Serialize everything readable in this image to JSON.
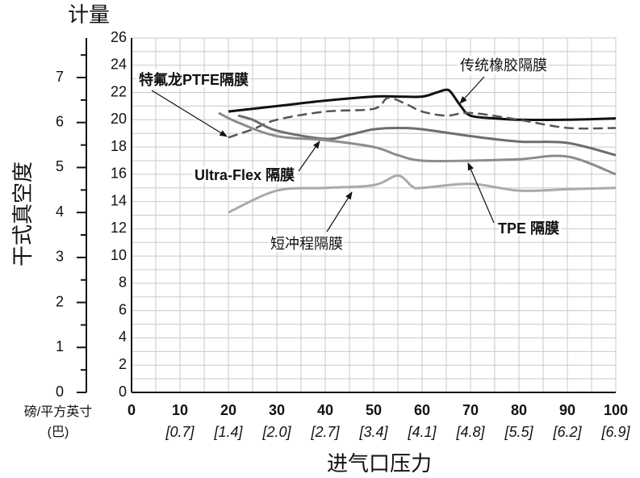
{
  "chart_data": {
    "type": "line",
    "y2_title": "计量",
    "ylabel": "干式真空度",
    "xlabel": "进气口压力",
    "x_unit_label": "磅/平方英寸",
    "x2_unit_label": "(巴)",
    "xlim": [
      0,
      100
    ],
    "xticks": [
      0,
      10,
      20,
      30,
      40,
      50,
      60,
      70,
      80,
      90,
      100
    ],
    "x2ticks": [
      {
        "value": 10,
        "label": "[0.7]"
      },
      {
        "value": 20,
        "label": "[1.4]"
      },
      {
        "value": 30,
        "label": "[2.0]"
      },
      {
        "value": 40,
        "label": "[2.7]"
      },
      {
        "value": 50,
        "label": "[3.4]"
      },
      {
        "value": 60,
        "label": "[4.1]"
      },
      {
        "value": 70,
        "label": "[4.8]"
      },
      {
        "value": 80,
        "label": "[5.5]"
      },
      {
        "value": 90,
        "label": "[6.2]"
      },
      {
        "value": 100,
        "label": "[6.9]"
      }
    ],
    "xgrid": [
      5,
      10,
      15,
      20,
      25,
      30,
      35,
      40,
      45,
      50,
      55,
      60,
      65,
      70,
      75,
      80,
      85,
      90,
      95,
      100
    ],
    "ylim": [
      0,
      26
    ],
    "yticks": [
      0,
      2,
      4,
      6,
      8,
      10,
      12,
      14,
      16,
      18,
      20,
      22,
      24,
      26
    ],
    "ygrid": [
      1,
      2,
      3,
      4,
      5,
      6,
      7,
      8,
      9,
      10,
      11,
      12,
      13,
      14,
      15,
      16,
      17,
      18,
      19,
      20,
      21,
      22,
      23,
      24,
      25,
      26
    ],
    "y2lim": [
      0,
      7.88
    ],
    "y2ticks": [
      0,
      1,
      2,
      3,
      4,
      5,
      6,
      7
    ],
    "y2minorticks": [
      0.5,
      1.5,
      2.5,
      3.5,
      4.5,
      5.5,
      6.5,
      7.5
    ],
    "grid": true,
    "series": [
      {
        "name": "传统橡胶隔膜",
        "color": "#111111",
        "dash": false,
        "x": [
          20,
          30,
          40,
          50,
          55,
          60,
          63,
          65,
          66,
          68,
          70,
          75,
          80,
          90,
          100
        ],
        "values": [
          20.6,
          21.0,
          21.4,
          21.7,
          21.7,
          21.7,
          22.0,
          22.2,
          22.0,
          21.0,
          20.3,
          20.1,
          20.0,
          20.0,
          20.1
        ]
      },
      {
        "name": "特氟龙PTFE隔膜",
        "color": "#555555",
        "dash": true,
        "x": [
          20,
          25,
          30,
          40,
          50,
          53,
          57,
          60,
          65,
          70,
          80,
          90,
          100
        ],
        "values": [
          18.7,
          19.3,
          20.0,
          20.6,
          20.8,
          21.6,
          21.1,
          20.6,
          20.3,
          20.5,
          20.0,
          19.4,
          19.4
        ]
      },
      {
        "name": "Ultra-Flex 隔膜",
        "color": "#6e6e6e",
        "dash": false,
        "x": [
          22,
          25,
          30,
          40,
          45,
          50,
          55,
          60,
          70,
          80,
          90,
          100
        ],
        "values": [
          20.3,
          20.0,
          19.2,
          18.6,
          18.9,
          19.3,
          19.4,
          19.3,
          18.8,
          18.4,
          18.3,
          17.4
        ]
      },
      {
        "name": "TPE 隔膜",
        "color": "#8c8c8c",
        "dash": false,
        "x": [
          18,
          22,
          30,
          40,
          50,
          55,
          60,
          70,
          80,
          90,
          100
        ],
        "values": [
          20.5,
          19.8,
          18.8,
          18.5,
          18.0,
          17.4,
          17.0,
          17.0,
          17.1,
          17.3,
          16.0
        ]
      },
      {
        "name": "短冲程隔膜",
        "color": "#aaaaaa",
        "dash": false,
        "x": [
          20,
          30,
          40,
          50,
          55,
          58,
          60,
          70,
          80,
          90,
          100
        ],
        "values": [
          13.2,
          14.8,
          15.0,
          15.2,
          15.9,
          15.1,
          15.0,
          15.3,
          14.8,
          14.9,
          15.0
        ]
      }
    ]
  }
}
